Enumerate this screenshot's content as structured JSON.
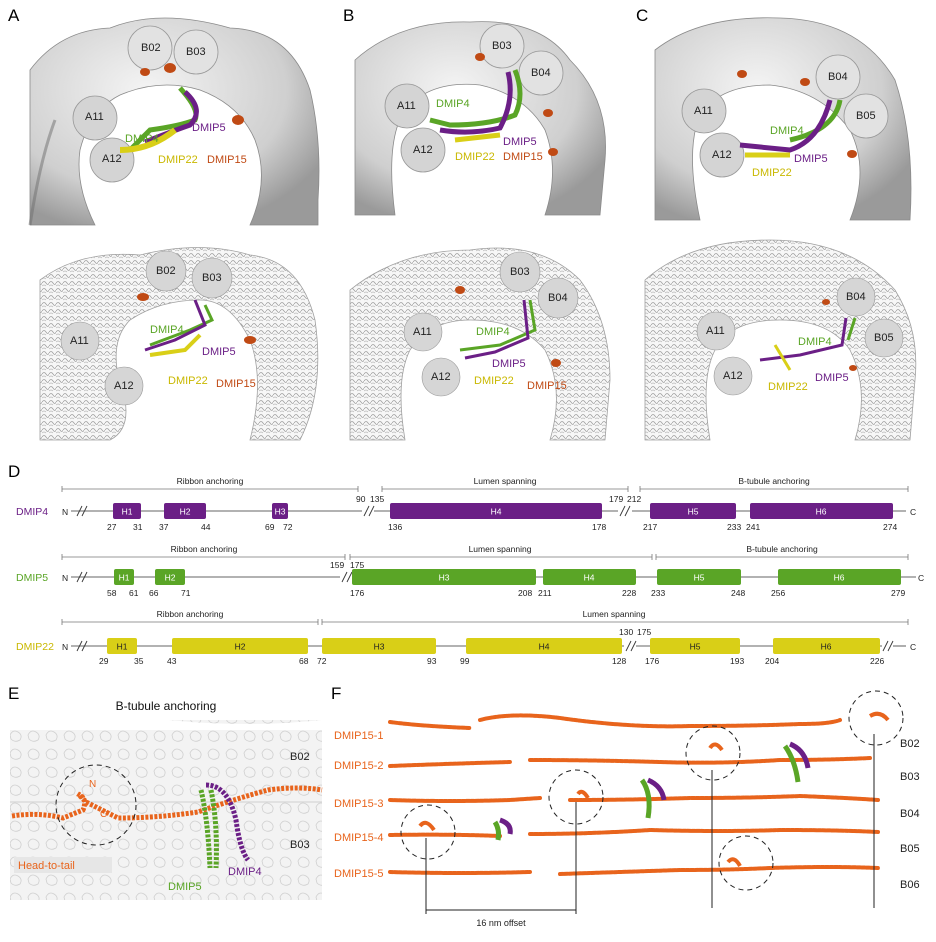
{
  "colors": {
    "DMIP4": "#6b1f86",
    "DMIP5": "#5aa526",
    "DMIP22": "#d9cf17",
    "DMIP15": "#e8641c",
    "protofilament_grey": "#c9c9c9",
    "text_dark": "#222222"
  },
  "panel_labels": [
    "A",
    "B",
    "C",
    "D",
    "E",
    "F"
  ],
  "structure_panels": [
    {
      "id": "A",
      "tubulins": [
        "B02",
        "B03",
        "A11",
        "A12"
      ],
      "proteins": [
        "DMIP4",
        "DMIP5",
        "DMIP22",
        "DMIP15"
      ]
    },
    {
      "id": "B",
      "tubulins": [
        "B03",
        "B04",
        "A11",
        "A12"
      ],
      "proteins": [
        "DMIP4",
        "DMIP5",
        "DMIP22",
        "DMIP15"
      ]
    },
    {
      "id": "C",
      "tubulins": [
        "B04",
        "B05",
        "A11",
        "A12"
      ],
      "proteins": [
        "DMIP4",
        "DMIP5",
        "DMIP22"
      ]
    }
  ],
  "domain_maps": [
    {
      "protein": "DMIP4",
      "sections": [
        {
          "label": "Ribbon anchoring",
          "from": 0,
          "to": 90
        },
        {
          "label": "Lumen spanning",
          "from": 135,
          "to": 179
        },
        {
          "label": "B-tubule anchoring",
          "from": 212,
          "to": 274
        }
      ],
      "break_labels": [
        "90",
        "135",
        "179",
        "212"
      ],
      "helices": [
        {
          "name": "H1",
          "start": "27",
          "end": "31"
        },
        {
          "name": "H2",
          "start": "37",
          "end": "44"
        },
        {
          "name": "H3",
          "start": "69",
          "end": "72"
        },
        {
          "name": "H4",
          "start": "136",
          "end": "178"
        },
        {
          "name": "H5",
          "start": "217",
          "end": "233"
        },
        {
          "name": "H6",
          "start": "241",
          "end": "274"
        }
      ]
    },
    {
      "protein": "DMIP5",
      "sections": [
        {
          "label": "Ribbon anchoring",
          "from": 0,
          "to": 159
        },
        {
          "label": "Lumen spanning",
          "from": 175,
          "to": 230
        },
        {
          "label": "B-tubule anchoring",
          "from": 230,
          "to": 279
        }
      ],
      "break_labels": [
        "159",
        "175"
      ],
      "helices": [
        {
          "name": "H1",
          "start": "58",
          "end": "61"
        },
        {
          "name": "H2",
          "start": "66",
          "end": "71"
        },
        {
          "name": "H3",
          "start": "176",
          "end": "208"
        },
        {
          "name": "H4",
          "start": "211",
          "end": "228"
        },
        {
          "name": "H5",
          "start": "233",
          "end": "248"
        },
        {
          "name": "H6",
          "start": "256",
          "end": "279"
        }
      ]
    },
    {
      "protein": "DMIP22",
      "sections": [
        {
          "label": "Ribbon anchoring",
          "from": 0,
          "to": 70
        },
        {
          "label": "Lumen spanning",
          "from": 70,
          "to": 226
        }
      ],
      "break_labels": [
        "130",
        "175"
      ],
      "helices": [
        {
          "name": "H1",
          "start": "29",
          "end": "35"
        },
        {
          "name": "H2",
          "start": "43",
          "end": "68"
        },
        {
          "name": "H3",
          "start": "72",
          "end": "93"
        },
        {
          "name": "H4",
          "start": "99",
          "end": "128"
        },
        {
          "name": "H5",
          "start": "176",
          "end": "193"
        },
        {
          "name": "H6",
          "start": "204",
          "end": "226"
        }
      ]
    }
  ],
  "terminal_labels": {
    "n": "N",
    "c": "C"
  },
  "panel_e": {
    "title": "B-tubule anchoring",
    "tubulins": [
      "B02",
      "B03"
    ],
    "n_label": "N",
    "c_label": "C",
    "head_to_tail": "Head-to-tail",
    "proteins": [
      "DMIP5",
      "DMIP4"
    ]
  },
  "panel_f": {
    "rows": [
      "DMIP15-1",
      "DMIP15-2",
      "DMIP15-3",
      "DMIP15-4",
      "DMIP15-5"
    ],
    "tubulins": [
      "B02",
      "B03",
      "B04",
      "B05",
      "B06"
    ],
    "offset_label": "16 nm offset"
  }
}
